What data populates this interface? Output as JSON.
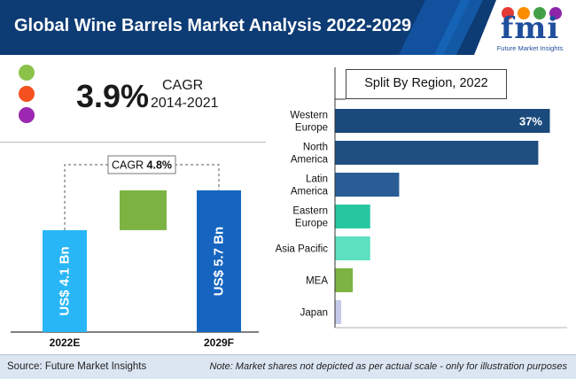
{
  "header": {
    "title": "Global Wine Barrels Market Analysis 2022-2029",
    "bg_color": "#0d3b74",
    "accent_color": "#1565c0"
  },
  "logo": {
    "text": "fmi",
    "subtitle": "Future Market Insights",
    "dot_colors": [
      "#e53935",
      "#fb8c00",
      "#43a047",
      "#8e24aa"
    ]
  },
  "legend_dots": [
    "#8bc34a",
    "#f4511e",
    "#9c27b0"
  ],
  "cagr": {
    "value": "3.9%",
    "label": "CAGR",
    "period": "2014-2021"
  },
  "footer": {
    "source": "Source: Future Market Insights",
    "note": "Note: Market shares not depicted as per actual scale - only for illustration purposes"
  },
  "chart_data": [
    {
      "type": "bar",
      "categories": [
        "2022E",
        "2029F"
      ],
      "values": [
        4.1,
        5.7
      ],
      "value_labels": [
        "US$ 4.1 Bn",
        "US$ 5.7 Bn"
      ],
      "cagr_label": "CAGR",
      "cagr_value": "4.8%",
      "colors": {
        "bar_2022": "#29b6f6",
        "bar_2029": "#1565c0",
        "growth": "#7cb342"
      }
    },
    {
      "type": "bar",
      "orientation": "horizontal",
      "title": "Split By Region, 2022",
      "categories": [
        [
          "Western",
          "Europe"
        ],
        [
          "North",
          "America"
        ],
        [
          "Latin",
          "America"
        ],
        [
          "Eastern",
          "Europe"
        ],
        [
          "Asia Pacific"
        ],
        [
          "MEA"
        ],
        [
          "Japan"
        ]
      ],
      "values": [
        37,
        35,
        11,
        6,
        6,
        3,
        1
      ],
      "labels": [
        "37%",
        "",
        "",
        "",
        "",
        "",
        ""
      ],
      "colors": [
        "#1a4a7c",
        "#1e4f80",
        "#2a5d95",
        "#26c6a0",
        "#5ce0c0",
        "#7cb342",
        "#c5cae9"
      ]
    }
  ]
}
